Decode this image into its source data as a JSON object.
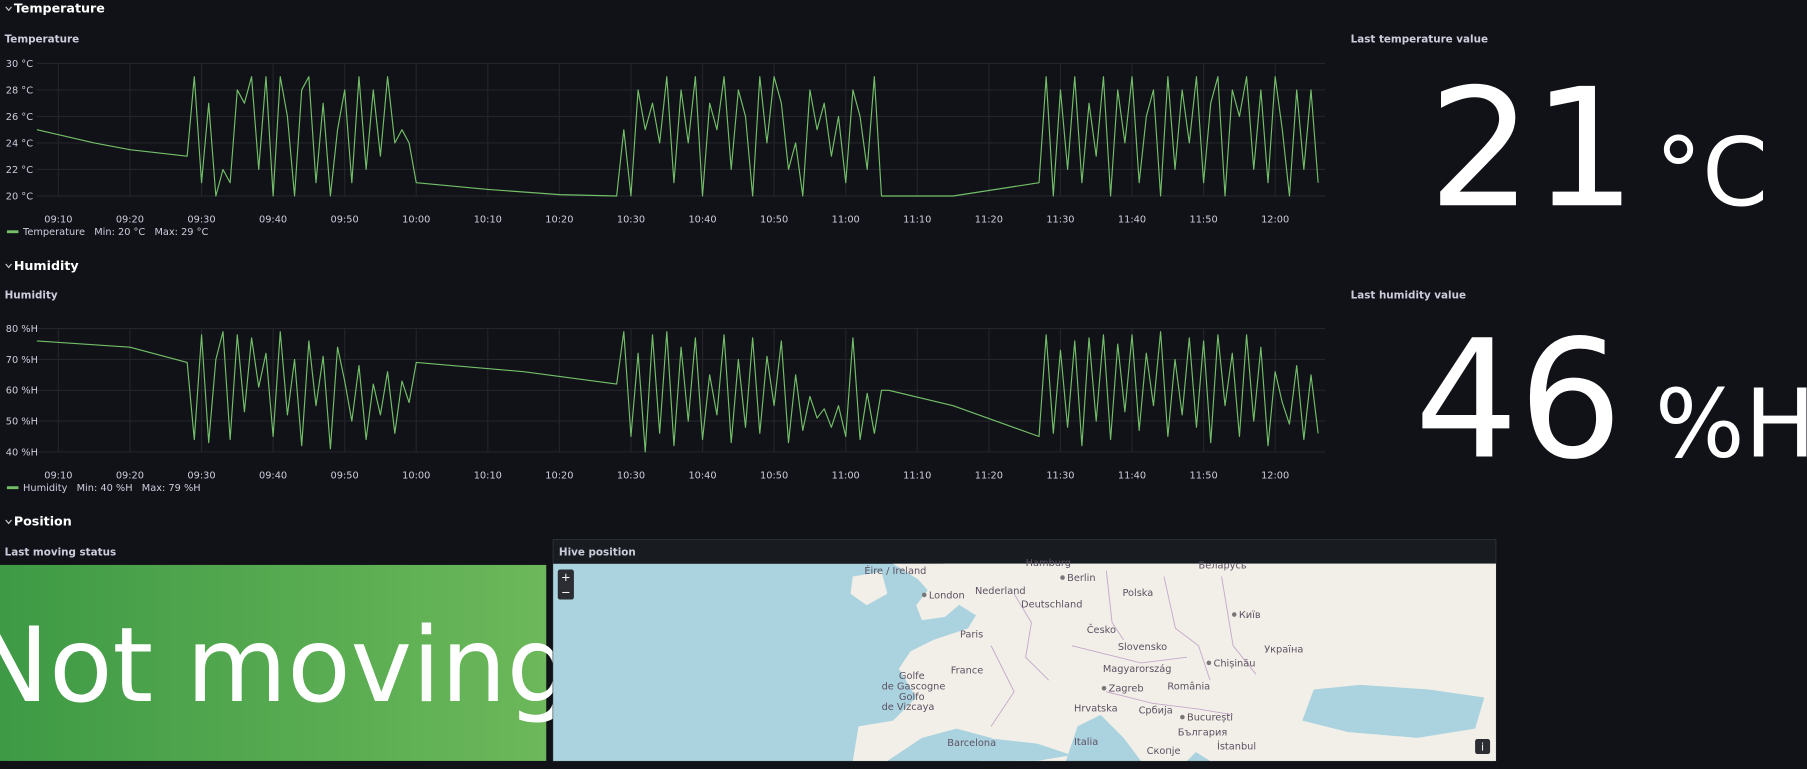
{
  "rows": [
    "Temperature",
    "Humidity",
    "Position"
  ],
  "chart_data": [
    {
      "type": "line",
      "title": "Temperature",
      "x": [
        "09:07",
        "09:15",
        "09:20",
        "09:28",
        "09:29",
        "09:30",
        "09:31",
        "09:32",
        "09:33",
        "09:34",
        "09:35",
        "09:36",
        "09:37",
        "09:38",
        "09:39",
        "09:40",
        "09:41",
        "09:42",
        "09:43",
        "09:44",
        "09:45",
        "09:46",
        "09:47",
        "09:48",
        "09:49",
        "09:50",
        "09:51",
        "09:52",
        "09:53",
        "09:54",
        "09:55",
        "09:56",
        "09:57",
        "09:58",
        "09:59",
        "10:00",
        "10:10",
        "10:20",
        "10:28",
        "10:29",
        "10:30",
        "10:31",
        "10:32",
        "10:33",
        "10:34",
        "10:35",
        "10:36",
        "10:37",
        "10:38",
        "10:39",
        "10:40",
        "10:41",
        "10:42",
        "10:43",
        "10:44",
        "10:45",
        "10:46",
        "10:47",
        "10:48",
        "10:49",
        "10:50",
        "10:51",
        "10:52",
        "10:53",
        "10:54",
        "10:55",
        "10:56",
        "10:57",
        "10:58",
        "10:59",
        "11:00",
        "11:01",
        "11:02",
        "11:03",
        "11:04",
        "11:05",
        "11:06",
        "11:15",
        "11:27",
        "11:28",
        "11:29",
        "11:30",
        "11:31",
        "11:32",
        "11:33",
        "11:34",
        "11:35",
        "11:36",
        "11:37",
        "11:38",
        "11:39",
        "11:40",
        "11:41",
        "11:42",
        "11:43",
        "11:44",
        "11:45",
        "11:46",
        "11:47",
        "11:48",
        "11:49",
        "11:50",
        "11:51",
        "11:52",
        "11:53",
        "11:54",
        "11:55",
        "11:56",
        "11:57",
        "11:58",
        "11:59",
        "12:00",
        "12:01",
        "12:02",
        "12:03",
        "12:04",
        "12:05",
        "12:06"
      ],
      "series": [
        {
          "name": "Temperature",
          "color": "#73bf69",
          "values": [
            25,
            24,
            23.5,
            23,
            29,
            21,
            27,
            20,
            22,
            21,
            28,
            27,
            29,
            22,
            29,
            20,
            29,
            26,
            20,
            28,
            29,
            21,
            27,
            20,
            25,
            28,
            21,
            29,
            22,
            28,
            23,
            29,
            24,
            25,
            24,
            21,
            20.5,
            20.1,
            20,
            25,
            20,
            28,
            25,
            27,
            24,
            29,
            21,
            28,
            24,
            29,
            20,
            27,
            25,
            29,
            22,
            28,
            26,
            20,
            29,
            24,
            29,
            27,
            22,
            24,
            20,
            28,
            25,
            27,
            23,
            26,
            21,
            28,
            26,
            22,
            29,
            20,
            20,
            20,
            21,
            29,
            20,
            28,
            22,
            29,
            21,
            27,
            23,
            29,
            20,
            28,
            24,
            29,
            21,
            26,
            28,
            20,
            29,
            22,
            28,
            24,
            29,
            21,
            27,
            29,
            20,
            28,
            26,
            29,
            22,
            28,
            21,
            29,
            25,
            20,
            28,
            22,
            28,
            21
          ]
        }
      ],
      "legend": [
        "Min: 20 °C",
        "Max: 29 °C"
      ],
      "xlim": [
        "09:07",
        "12:07"
      ],
      "xticks": [
        "09:10",
        "09:20",
        "09:30",
        "09:40",
        "09:50",
        "10:00",
        "10:10",
        "10:20",
        "10:30",
        "10:40",
        "10:50",
        "11:00",
        "11:10",
        "11:20",
        "11:30",
        "11:40",
        "11:50",
        "12:00"
      ],
      "ylim": [
        20,
        30
      ],
      "yticks": [
        {
          "value": 20,
          "label": "20 °C"
        },
        {
          "value": 22,
          "label": "22 °C"
        },
        {
          "value": 24,
          "label": "24 °C"
        },
        {
          "value": 26,
          "label": "26 °C"
        },
        {
          "value": 28,
          "label": "28 °C"
        },
        {
          "value": 30,
          "label": "30 °C"
        }
      ],
      "grid": true
    },
    {
      "type": "line",
      "title": "Humidity",
      "x": [
        "09:07",
        "09:20",
        "09:28",
        "09:29",
        "09:30",
        "09:31",
        "09:32",
        "09:33",
        "09:34",
        "09:35",
        "09:36",
        "09:37",
        "09:38",
        "09:39",
        "09:40",
        "09:41",
        "09:42",
        "09:43",
        "09:44",
        "09:45",
        "09:46",
        "09:47",
        "09:48",
        "09:49",
        "09:50",
        "09:51",
        "09:52",
        "09:53",
        "09:54",
        "09:55",
        "09:56",
        "09:57",
        "09:58",
        "09:59",
        "10:00",
        "10:15",
        "10:28",
        "10:29",
        "10:30",
        "10:31",
        "10:32",
        "10:33",
        "10:34",
        "10:35",
        "10:36",
        "10:37",
        "10:38",
        "10:39",
        "10:40",
        "10:41",
        "10:42",
        "10:43",
        "10:44",
        "10:45",
        "10:46",
        "10:47",
        "10:48",
        "10:49",
        "10:50",
        "10:51",
        "10:52",
        "10:53",
        "10:54",
        "10:55",
        "10:56",
        "10:57",
        "10:58",
        "10:59",
        "11:00",
        "11:01",
        "11:02",
        "11:03",
        "11:04",
        "11:05",
        "11:06",
        "11:15",
        "11:27",
        "11:28",
        "11:29",
        "11:30",
        "11:31",
        "11:32",
        "11:33",
        "11:34",
        "11:35",
        "11:36",
        "11:37",
        "11:38",
        "11:39",
        "11:40",
        "11:41",
        "11:42",
        "11:43",
        "11:44",
        "11:45",
        "11:46",
        "11:47",
        "11:48",
        "11:49",
        "11:50",
        "11:51",
        "11:52",
        "11:53",
        "11:54",
        "11:55",
        "11:56",
        "11:57",
        "11:58",
        "11:59",
        "12:00",
        "12:01",
        "12:02",
        "12:03",
        "12:04",
        "12:05",
        "12:06"
      ],
      "series": [
        {
          "name": "Humidity",
          "color": "#73bf69",
          "values": [
            76,
            74,
            69,
            44,
            78,
            43,
            70,
            79,
            44,
            78,
            53,
            77,
            61,
            72,
            45,
            79,
            52,
            70,
            42,
            76,
            55,
            71,
            41,
            74,
            63,
            50,
            68,
            44,
            62,
            52,
            66,
            46,
            63,
            56,
            69,
            66,
            62,
            79,
            45,
            72,
            40,
            78,
            46,
            79,
            42,
            74,
            50,
            77,
            44,
            65,
            52,
            78,
            43,
            70,
            48,
            77,
            46,
            71,
            55,
            76,
            43,
            65,
            47,
            58,
            51,
            54,
            48,
            55,
            45,
            77,
            44,
            59,
            46,
            60,
            60,
            55,
            45,
            78,
            46,
            73,
            48,
            76,
            42,
            77,
            50,
            78,
            44,
            75,
            53,
            78,
            47,
            72,
            55,
            79,
            45,
            70,
            52,
            77,
            48,
            76,
            43,
            78,
            55,
            72,
            45,
            78,
            50,
            74,
            42,
            66,
            56,
            49,
            68,
            44,
            65,
            46
          ]
        }
      ],
      "legend": [
        "Min: 40 %H",
        "Max: 79 %H"
      ],
      "xlim": [
        "09:07",
        "12:07"
      ],
      "xticks": [
        "09:10",
        "09:20",
        "09:30",
        "09:40",
        "09:50",
        "10:00",
        "10:10",
        "10:20",
        "10:30",
        "10:40",
        "10:50",
        "11:00",
        "11:10",
        "11:20",
        "11:30",
        "11:40",
        "11:50",
        "12:00"
      ],
      "ylim": [
        40,
        80
      ],
      "yticks": [
        {
          "value": 40,
          "label": "40 %H"
        },
        {
          "value": 50,
          "label": "50 %H"
        },
        {
          "value": 60,
          "label": "60 %H"
        },
        {
          "value": 70,
          "label": "70 %H"
        },
        {
          "value": 80,
          "label": "80 %H"
        }
      ],
      "grid": true
    }
  ],
  "stats": [
    {
      "title": "Last temperature value",
      "value": "21",
      "unit": "°C"
    },
    {
      "title": "Last humidity value",
      "value": "46",
      "unit": "%H"
    }
  ],
  "status": {
    "title": "Last moving status",
    "value": "Not moving"
  },
  "map": {
    "title": "Hive position",
    "zoom_in": "+",
    "zoom_out": "−",
    "info": "i",
    "labels": [
      "Éire / Ireland",
      "London",
      "Nederland",
      "Hamburg",
      "Berlin",
      "Polska",
      "Беларусь",
      "Deutschland",
      "Київ",
      "Paris",
      "Česko",
      "Україна",
      "Slovensko",
      "France",
      "Magyarország",
      "Chișinău",
      "Golfe",
      "de Gascogne",
      "Golfo",
      "de Vizcaya",
      "Zagreb",
      "România",
      "Hrvatska",
      "Србија",
      "București",
      "България",
      "Barcelona",
      "Italia",
      "Скопје",
      "İstanbul"
    ]
  }
}
